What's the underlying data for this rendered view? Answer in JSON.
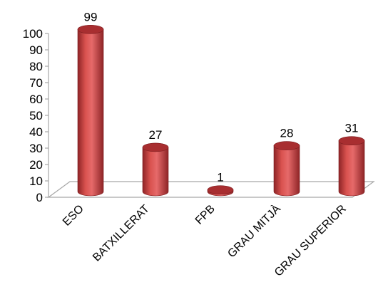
{
  "chart_data": {
    "type": "bar",
    "title": "",
    "xlabel": "",
    "ylabel": "",
    "categories": [
      "ESO",
      "BATXILLERAT",
      "FPB",
      "GRAU MITJÀ",
      "GRAU SUPERIOR"
    ],
    "values": [
      99,
      27,
      1,
      28,
      31
    ],
    "data_labels": [
      "99",
      "27",
      "1",
      "28",
      "31"
    ],
    "yticks": [
      "0",
      "10",
      "20",
      "30",
      "40",
      "50",
      "60",
      "70",
      "80",
      "90",
      "100"
    ],
    "ylim": [
      0,
      100
    ],
    "bar_style": "3d-cylinder",
    "colors": {
      "bar": "#c0393b",
      "bar_dark": "#7e1e20",
      "bar_light": "#e66a6a",
      "bar_top": "#a82e30",
      "floor": "#ffffff",
      "axis": "#a6a6a6",
      "text": "#000000"
    },
    "legend": "none",
    "grid": false
  }
}
